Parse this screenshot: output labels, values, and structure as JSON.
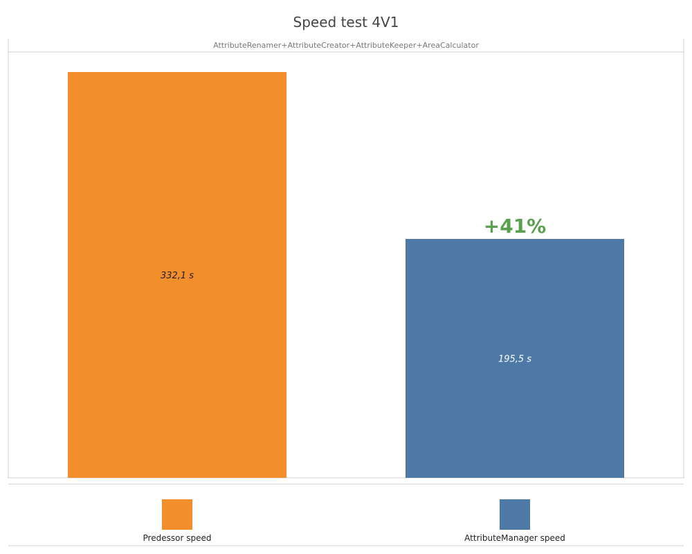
{
  "chart_data": {
    "type": "bar",
    "title": "Speed test 4V1",
    "subtitle": "AttributeRenamer+AttributeCreator+AttributeKeeper+AreaCalculator",
    "categories": [
      "Predessor speed",
      "AttributeManager speed"
    ],
    "values": [
      332.1,
      195.5
    ],
    "data_labels": [
      "332,1 s",
      "195,5 s"
    ],
    "colors": [
      "#f28e2b",
      "#4e79a7"
    ],
    "label_colors": [
      "#222222",
      "#ffffff"
    ],
    "annotation": {
      "text": "+41%",
      "category": "AttributeManager speed",
      "color": "#59a14f"
    },
    "xlabel": "",
    "ylabel": "",
    "ylim": [
      0,
      350
    ],
    "grid": false,
    "legend_position": "bottom"
  }
}
